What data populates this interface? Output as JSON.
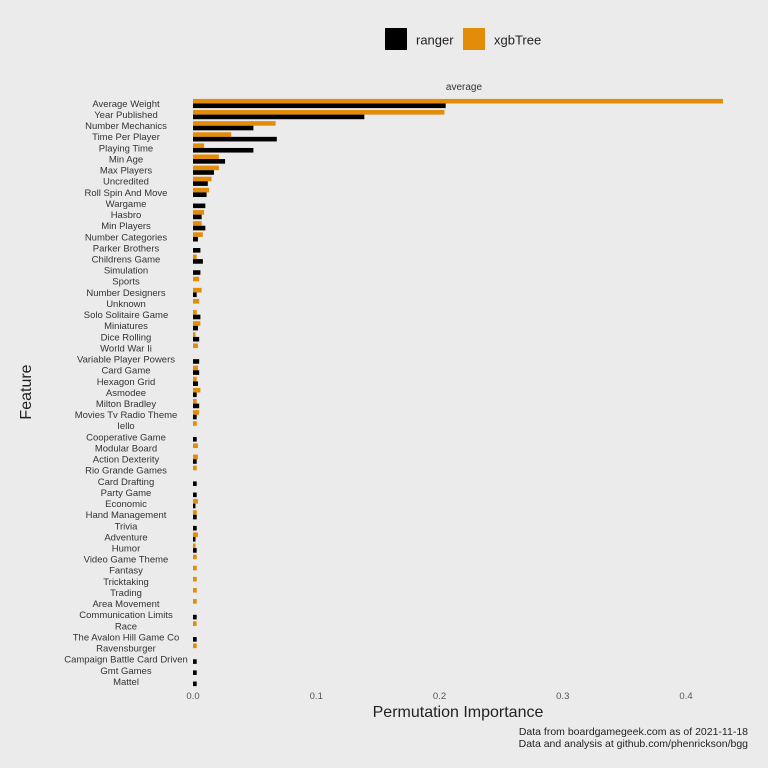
{
  "chart_data": {
    "type": "bar",
    "orientation": "horizontal",
    "facet_label": "average",
    "xlabel": "Permutation Importance",
    "ylabel": "Feature",
    "xlim": [
      -0.003,
      0.44
    ],
    "x_ticks": [
      "0.0",
      "0.1",
      "0.2",
      "0.3",
      "0.4"
    ],
    "x_tick_values": [
      0.0,
      0.1,
      0.2,
      0.3,
      0.4
    ],
    "grid": false,
    "legend_position": "top",
    "colors": {
      "ranger": "#000000",
      "xgbTree": "#e28c0a",
      "background": "#ebebeb"
    },
    "categories": [
      "Average Weight",
      "Year Published",
      "Number Mechanics",
      "Time Per Player",
      "Playing Time",
      "Min Age",
      "Max Players",
      "Uncredited",
      "Roll Spin And Move",
      "Wargame",
      "Hasbro",
      "Min Players",
      "Number Categories",
      "Parker Brothers",
      "Childrens Game",
      "Simulation",
      "Sports",
      "Number Designers",
      "Unknown",
      "Solo Solitaire Game",
      "Miniatures",
      "Dice Rolling",
      "World War Ii",
      "Variable Player Powers",
      "Card Game",
      "Hexagon Grid",
      "Asmodee",
      "Milton Bradley",
      "Movies Tv Radio Theme",
      "Iello",
      "Cooperative Game",
      "Modular Board",
      "Action Dexterity",
      "Rio Grande Games",
      "Card Drafting",
      "Party Game",
      "Economic",
      "Hand Management",
      "Trivia",
      "Adventure",
      "Humor",
      "Video Game Theme",
      "Fantasy",
      "Tricktaking",
      "Trading",
      "Area Movement",
      "Communication Limits",
      "Race",
      "The Avalon Hill Game Co",
      "Ravensburger",
      "Campaign Battle Card Driven",
      "Gmt Games",
      "Mattel"
    ],
    "series": [
      {
        "name": "xgbTree",
        "values": [
          0.43,
          0.204,
          0.067,
          0.031,
          0.009,
          0.021,
          0.021,
          0.015,
          0.013,
          0.0,
          0.009,
          0.007,
          0.008,
          0.0,
          0.003,
          0.0,
          0.005,
          0.007,
          0.005,
          0.003,
          0.006,
          0.002,
          0.004,
          0.0,
          0.004,
          0.003,
          0.006,
          0.003,
          0.005,
          0.003,
          0.0,
          0.004,
          0.004,
          0.003,
          0.0,
          0.0,
          0.004,
          0.003,
          0.0,
          0.004,
          0.002,
          0.003,
          0.003,
          0.003,
          0.003,
          0.003,
          0.0,
          0.003,
          0.0,
          0.003,
          0.0,
          0.0,
          0.0
        ]
      },
      {
        "name": "ranger",
        "values": [
          0.205,
          0.139,
          0.049,
          0.068,
          0.049,
          0.026,
          0.017,
          0.012,
          0.011,
          0.01,
          0.007,
          0.01,
          0.004,
          0.006,
          0.008,
          0.006,
          0.0,
          0.003,
          0.0,
          0.006,
          0.004,
          0.005,
          0.0,
          0.005,
          0.005,
          0.004,
          0.003,
          0.005,
          0.003,
          0.0,
          0.003,
          0.0,
          0.003,
          0.0,
          0.003,
          0.003,
          0.002,
          0.003,
          0.003,
          0.002,
          0.003,
          0.0,
          0.0,
          0.0,
          0.0,
          0.0,
          0.003,
          0.0,
          0.003,
          0.0,
          0.003,
          0.003,
          0.003
        ]
      }
    ],
    "legend": {
      "items": [
        "ranger",
        "xgbTree"
      ]
    },
    "caption": {
      "line1": "Data from boardgamegeek.com as of 2021-11-18",
      "line2": "Data and analysis at github.com/phenrickson/bgg"
    }
  }
}
